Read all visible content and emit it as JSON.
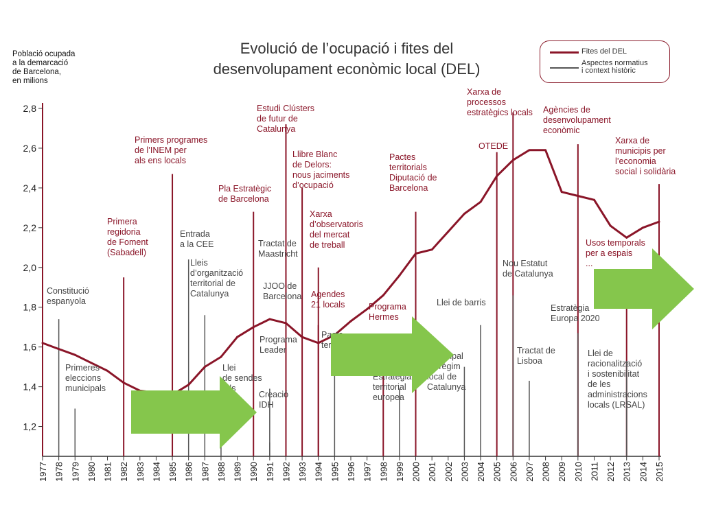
{
  "chart_data": {
    "type": "line",
    "title": "Evolució de l'ocupació i fites del desenvolupament econòmic local (DEL)",
    "title_lines": [
      "Evolució de l’ocupació i fites del",
      "desenvolupament econòmic local (DEL)"
    ],
    "ylabel_lines": [
      "Població ocupada",
      "a la demarcació",
      "de Barcelona,",
      "en milions"
    ],
    "ylim": [
      1.05,
      2.8
    ],
    "yticks": [
      "1,2",
      "1,4",
      "1,6",
      "1,8",
      "2,0",
      "2,2",
      "2,4",
      "2,6",
      "2,8"
    ],
    "x": [
      "1977",
      "1978",
      "1979",
      "1980",
      "1981",
      "1982",
      "1983",
      "1984",
      "1985",
      "1986",
      "1987",
      "1988",
      "1989",
      "1990",
      "1991",
      "1992",
      "1993",
      "1994",
      "1995",
      "1996",
      "1997",
      "1998",
      "1999",
      "2000",
      "2001",
      "2002",
      "2003",
      "2004",
      "2005",
      "2006",
      "2007",
      "2008",
      "2009",
      "2010",
      "2011",
      "2012",
      "2013",
      "2014",
      "2015"
    ],
    "series": [
      {
        "values": [
          1.62,
          1.59,
          1.56,
          1.52,
          1.48,
          1.42,
          1.38,
          1.37,
          1.36,
          1.41,
          1.5,
          1.55,
          1.65,
          1.7,
          1.74,
          1.72,
          1.65,
          1.62,
          1.66,
          1.73,
          1.79,
          1.86,
          1.96,
          2.07,
          2.09,
          2.18,
          2.27,
          2.33,
          2.46,
          2.54,
          2.59,
          2.59,
          2.38,
          2.36,
          2.34,
          2.21,
          2.15,
          2.2,
          2.23
        ]
      }
    ],
    "legend": {
      "position": "top-right",
      "del": "Fites del DEL",
      "ctx_lines": [
        "Aspectes normatius",
        "i context històric"
      ]
    },
    "milestones": [
      {
        "type": "ctx",
        "year": 1978,
        "top": 1.74,
        "lines": [
          "Constitució",
          "espanyola"
        ]
      },
      {
        "type": "ctx",
        "year": 1979,
        "top": 1.29,
        "lines": [
          "Primeres",
          "eleccions",
          "municipals"
        ]
      },
      {
        "type": "del",
        "year": 1982,
        "top": 1.95,
        "lines": [
          "Primera",
          "regidoria",
          "de Foment",
          "(Sabadell)"
        ]
      },
      {
        "type": "del",
        "year": 1985,
        "top": 2.47,
        "lines": [
          "Primers programes",
          "de l’INEM per",
          "als ens locals"
        ]
      },
      {
        "type": "ctx",
        "year": 1986,
        "top": 2.04,
        "lines": [
          "Entrada",
          "a la CEE"
        ]
      },
      {
        "type": "ctx",
        "year": 1987,
        "top": 1.76,
        "lines": [
          "Lleis",
          "d’organització",
          "territorial de",
          "Catalunya"
        ]
      },
      {
        "type": "ctx",
        "year": 1988,
        "top": 1.42,
        "lines": [
          "Llei",
          "de sendes",
          "...ls"
        ]
      },
      {
        "type": "del",
        "year": 1990,
        "top": 2.28,
        "lines": [
          "Pla Estratègic",
          "de Barcelona"
        ]
      },
      {
        "type": "ctx",
        "year": 1991,
        "top": 1.39,
        "lines": [
          "Programa",
          "Leader"
        ]
      },
      {
        "type": "ctx",
        "year": 1991,
        "top": 1.12,
        "lines": [
          "Creació",
          "IDH"
        ]
      },
      {
        "type": "ctx",
        "year": 1992,
        "top": 1.97,
        "lines": [
          "Tractat de",
          "Maastricht"
        ]
      },
      {
        "type": "ctx",
        "year": 1992,
        "top": 1.75,
        "lines": [
          "JJOO de",
          "Barcelona"
        ]
      },
      {
        "type": "del",
        "year": 1992,
        "top": 2.72,
        "lines": [
          "Estudi Clústers",
          "de futur de",
          "Catalunya"
        ]
      },
      {
        "type": "del",
        "year": 1993,
        "top": 2.4,
        "lines": [
          "Llibre Blanc",
          "de Delors:",
          "nous jaciments",
          "d’ocupació"
        ]
      },
      {
        "type": "del",
        "year": 1994,
        "top": 2.0,
        "lines": [
          "Xarxa",
          "d’observatoris",
          "del mercat",
          "de treball"
        ]
      },
      {
        "type": "del",
        "year": 1994,
        "top": 1.71,
        "lines": [
          "Agendes",
          "21 locals"
        ]
      },
      {
        "type": "ctx",
        "year": 1995,
        "top": 1.52,
        "lines": [
          "Pacte",
          "ter..."
        ]
      },
      {
        "type": "del",
        "year": 1998,
        "top": 1.65,
        "lines": [
          "Programa",
          "Hermes"
        ]
      },
      {
        "type": "ctx",
        "year": 1999,
        "top": 1.39,
        "lines": [
          "Estratègia",
          "territorial",
          "europea"
        ]
      },
      {
        "type": "del",
        "year": 2000,
        "top": 2.28,
        "lines": [
          "Pactes",
          "territorials",
          "Diputació de",
          "Barcelona"
        ]
      },
      {
        "type": "ctx",
        "year": 2003,
        "top": 1.5,
        "lines": [
          "...unicipal",
          "de règim",
          "local de",
          "Catalunya"
        ]
      },
      {
        "type": "ctx",
        "year": 2004,
        "top": 1.71,
        "lines": [
          "Llei de barris"
        ]
      },
      {
        "type": "del",
        "year": 2005,
        "top": 2.58,
        "lines": [
          "OTEDE"
        ]
      },
      {
        "type": "del",
        "year": 2006,
        "top": 2.78,
        "lines": [
          "Xarxa de",
          "processos",
          "estratègics locals"
        ]
      },
      {
        "type": "ctx",
        "year": 2006,
        "top": 1.86,
        "lines": [
          "Nou Estatut",
          "de Catalunya"
        ]
      },
      {
        "type": "ctx",
        "year": 2007,
        "top": 1.43,
        "lines": [
          "Tractat de",
          "Lisboa"
        ]
      },
      {
        "type": "del",
        "year": 2010,
        "top": 2.62,
        "lines": [
          "Agències de",
          "desenvolupament",
          "econòmic"
        ]
      },
      {
        "type": "ctx",
        "year": 2010,
        "top": 1.67,
        "lines": [
          "Estratègia",
          "Europa 2020"
        ]
      },
      {
        "type": "del",
        "year": 2013,
        "top": 1.97,
        "lines": [
          "Usos temporals",
          "per a espais",
          "..."
        ]
      },
      {
        "type": "ctx",
        "year": 2013,
        "top": 1.53,
        "lines": [
          "Llei de",
          "racionalització",
          "i sostenibilitat",
          "de les",
          "administracions",
          "locals (LRSAL)"
        ]
      },
      {
        "type": "del",
        "year": 2015,
        "top": 2.42,
        "lines": [
          "Xarxa de",
          "municipis per",
          "l’economia",
          "social i solidària"
        ]
      }
    ],
    "colors": {
      "del": "#8a1528",
      "ctx": "#555555",
      "arrows": "#85c64c"
    },
    "grid": false
  }
}
